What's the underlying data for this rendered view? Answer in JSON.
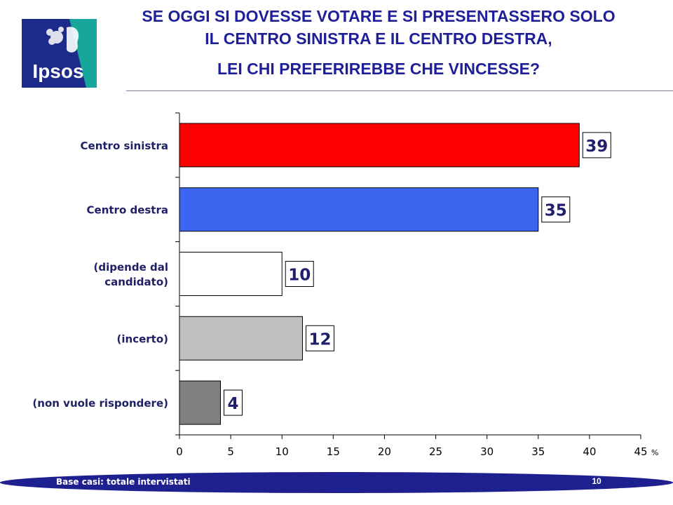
{
  "header": {
    "logo_text": "Ipsos",
    "title_lines": [
      "SE OGGI SI DOVESSE VOTARE E SI PRESENTASSERO SOLO",
      "IL CENTRO SINISTRA E IL CENTRO DESTRA,",
      "LEI CHI PREFERIREBBE CHE VINCESSE?"
    ]
  },
  "chart_data": {
    "type": "bar",
    "orientation": "horizontal",
    "categories": [
      [
        "Centro sinistra"
      ],
      [
        "Centro destra"
      ],
      [
        "(dipende dal",
        "candidato)"
      ],
      [
        "(incerto)"
      ],
      [
        "(non vuole rispondere)"
      ]
    ],
    "values": [
      39,
      35,
      10,
      12,
      4
    ],
    "bar_colors": [
      "#ff0000",
      "#3c66f0",
      "#ffffff",
      "#c0c0c0",
      "#808080"
    ],
    "xlim": [
      0,
      45
    ],
    "xticks": [
      0,
      5,
      10,
      15,
      20,
      25,
      30,
      35,
      40,
      45
    ],
    "x_unit": "%",
    "data_labels": true,
    "grid": false
  },
  "footer": {
    "base": "Base casi: totale intervistati",
    "page": "10"
  }
}
